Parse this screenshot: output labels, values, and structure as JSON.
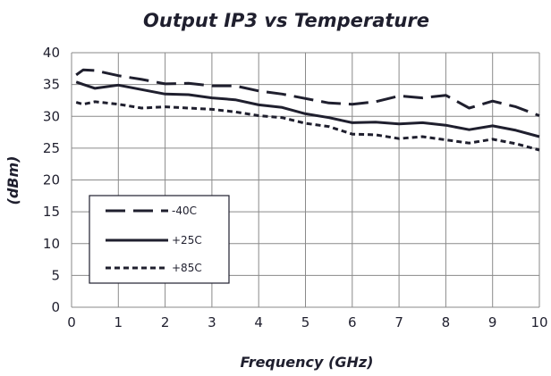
{
  "chart_data": {
    "type": "line",
    "title": "Output IP3 vs Temperature",
    "xlabel": "Frequency (GHz)",
    "ylabel": "(dBm)",
    "xlim": [
      0,
      10
    ],
    "ylim": [
      0,
      40
    ],
    "xticks": [
      0,
      1,
      2,
      3,
      4,
      5,
      6,
      7,
      8,
      9,
      10
    ],
    "yticks": [
      0,
      5,
      10,
      15,
      20,
      25,
      30,
      35,
      40
    ],
    "grid": true,
    "legend_position": "lower-left",
    "x": [
      0.1,
      0.25,
      0.5,
      1,
      1.5,
      2,
      2.5,
      3,
      3.5,
      4,
      4.5,
      5,
      5.5,
      6,
      6.5,
      7,
      7.5,
      8,
      8.5,
      9,
      9.5,
      10
    ],
    "series": [
      {
        "name": "-40C",
        "style": "long-dash",
        "color": "#1f1f2e",
        "values": [
          36.5,
          37.3,
          37.2,
          36.4,
          35.8,
          35.1,
          35.2,
          34.8,
          34.8,
          34.0,
          33.5,
          32.8,
          32.1,
          31.9,
          32.3,
          33.2,
          32.9,
          33.3,
          31.3,
          32.4,
          31.5,
          30.1
        ]
      },
      {
        "name": "+25C",
        "style": "solid",
        "color": "#1f1f2e",
        "values": [
          35.4,
          35.0,
          34.4,
          34.9,
          34.2,
          33.5,
          33.4,
          32.9,
          32.6,
          31.8,
          31.4,
          30.4,
          29.8,
          29.0,
          29.1,
          28.8,
          29.0,
          28.6,
          27.9,
          28.5,
          27.8,
          26.8
        ]
      },
      {
        "name": "+85C",
        "style": "short-dash",
        "color": "#1f1f2e",
        "values": [
          32.2,
          31.9,
          32.3,
          31.9,
          31.3,
          31.5,
          31.3,
          31.1,
          30.7,
          30.1,
          29.8,
          28.9,
          28.4,
          27.2,
          27.1,
          26.5,
          26.8,
          26.3,
          25.8,
          26.4,
          25.7,
          24.7
        ]
      }
    ]
  }
}
